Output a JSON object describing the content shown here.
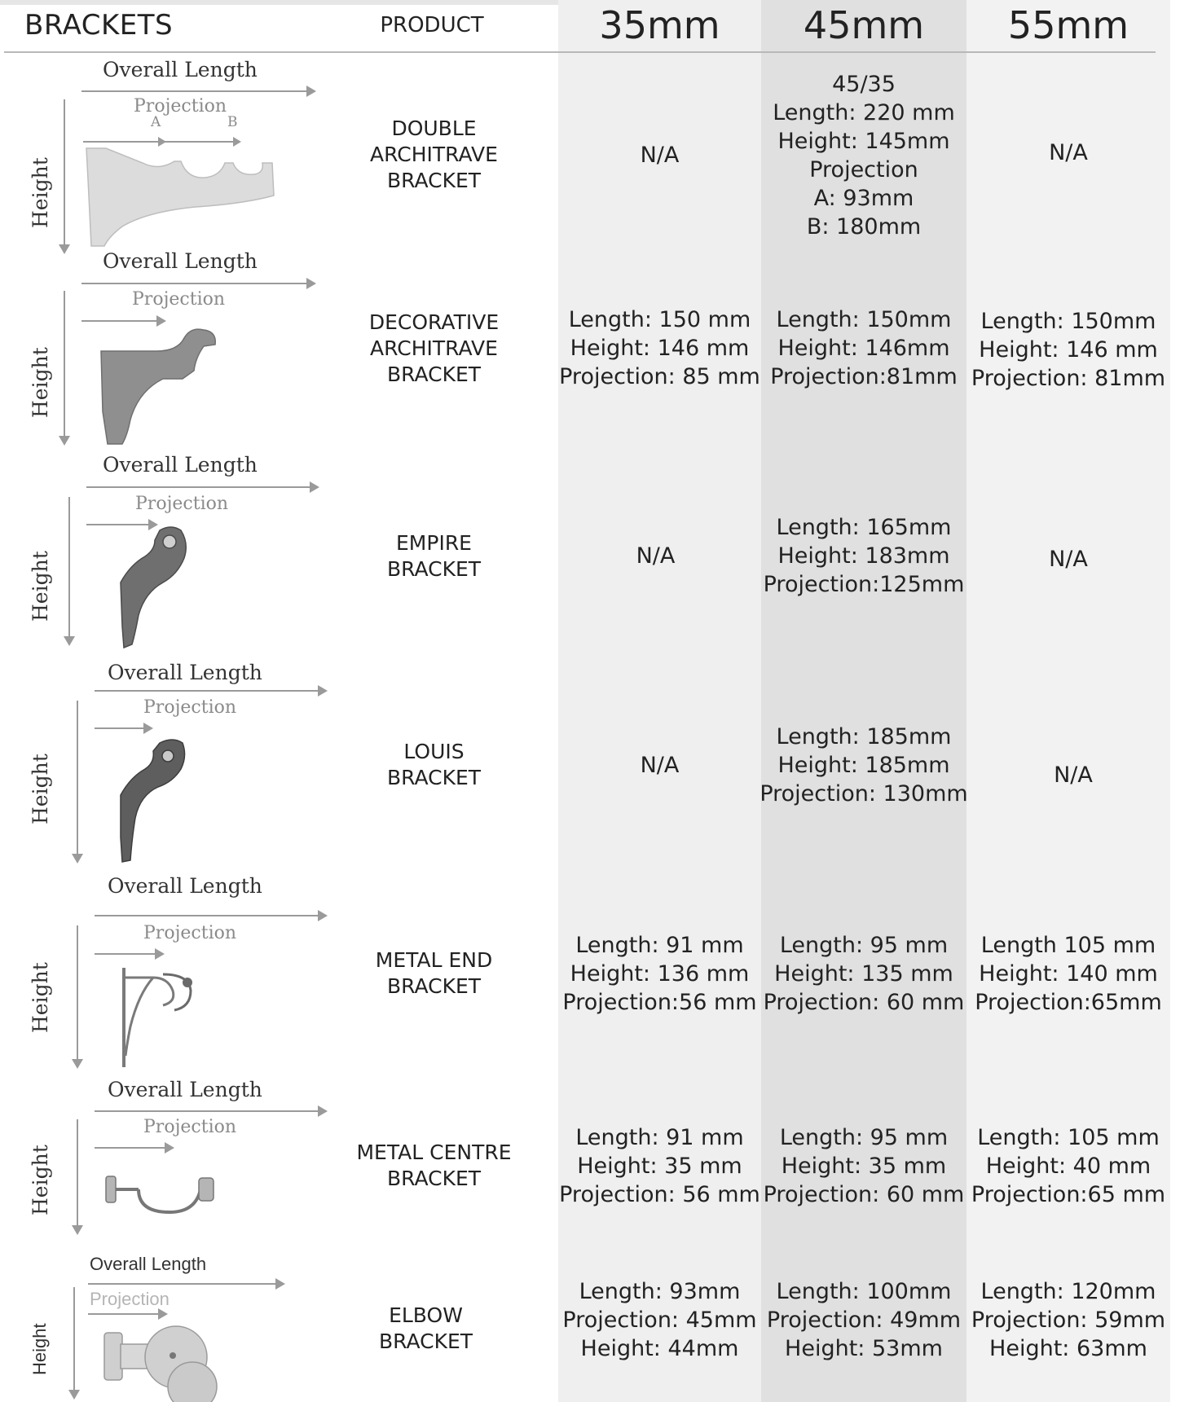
{
  "header": {
    "brackets": "BRACKETS",
    "product": "PRODUCT",
    "sizes": [
      "35mm",
      "45mm",
      "55mm"
    ]
  },
  "labels": {
    "overall_length": "Overall Length",
    "projection": "Projection",
    "height": "Height",
    "a": "A",
    "b": "B"
  },
  "rows": [
    {
      "product": [
        "DOUBLE",
        "ARCHITRAVE",
        "BRACKET"
      ],
      "c35": [
        "N/A"
      ],
      "c45": [
        "45/35",
        "Length: 220 mm",
        "Height: 145mm",
        "Projection",
        "A: 93mm",
        "B: 180mm"
      ],
      "c55": [
        "N/A"
      ]
    },
    {
      "product": [
        "DECORATIVE",
        "ARCHITRAVE",
        "BRACKET"
      ],
      "c35": [
        "Length: 150 mm",
        "Height: 146 mm",
        "Projection: 85 mm"
      ],
      "c45": [
        "Length: 150mm",
        "Height: 146mm",
        "Projection:81mm"
      ],
      "c55": [
        "Length: 150mm",
        "Height: 146 mm",
        "Projection: 81mm"
      ]
    },
    {
      "product": [
        "EMPIRE",
        "BRACKET"
      ],
      "c35": [
        "N/A"
      ],
      "c45": [
        "Length: 165mm",
        "Height: 183mm",
        "Projection:125mm"
      ],
      "c55": [
        "N/A"
      ]
    },
    {
      "product": [
        "LOUIS",
        "BRACKET"
      ],
      "c35": [
        "N/A"
      ],
      "c45": [
        "Length: 185mm",
        "Height: 185mm",
        "Projection: 130mm"
      ],
      "c55": [
        "N/A"
      ]
    },
    {
      "product": [
        "METAL END",
        "BRACKET"
      ],
      "c35": [
        "Length: 91 mm",
        "Height: 136 mm",
        "Projection:56 mm"
      ],
      "c45": [
        "Length: 95 mm",
        "Height: 135 mm",
        "Projection: 60 mm"
      ],
      "c55": [
        "Length 105 mm",
        "Height: 140 mm",
        "Projection:65mm"
      ]
    },
    {
      "product": [
        "METAL CENTRE",
        "BRACKET"
      ],
      "c35": [
        "Length: 91 mm",
        "Height: 35 mm",
        "Projection: 56 mm"
      ],
      "c45": [
        "Length: 95 mm",
        "Height: 35 mm",
        "Projection: 60 mm"
      ],
      "c55": [
        "Length: 105 mm",
        "Height: 40 mm",
        "Projection:65 mm"
      ]
    },
    {
      "product": [
        "ELBOW",
        "BRACKET"
      ],
      "c35": [
        "Length: 93mm",
        "Projection: 45mm",
        "Height: 44mm"
      ],
      "c45": [
        "Length: 100mm",
        "Projection: 49mm",
        "Height: 53mm"
      ],
      "c55": [
        "Length: 120mm",
        "Projection: 59mm",
        "Height: 63mm"
      ]
    }
  ],
  "colors": {
    "col35_bg": "#efefef",
    "col45_bg": "#e0e0e0",
    "col55_bg": "#f2f2f2",
    "arrow": "#9a9a9a"
  }
}
